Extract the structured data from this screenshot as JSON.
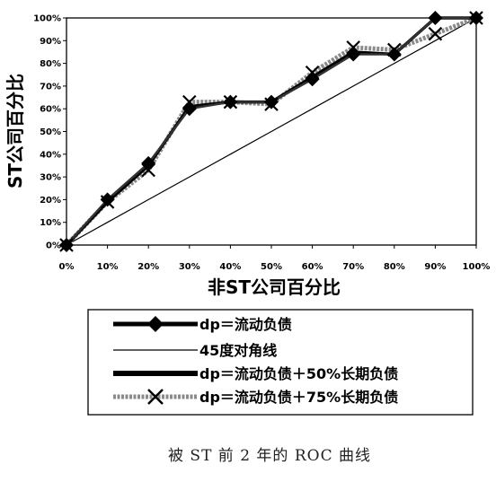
{
  "chart_data": {
    "type": "line",
    "xlabel": "非ST公司百分比",
    "ylabel": "ST公司百分比",
    "caption": "被 ST 前 2 年的 ROC 曲线",
    "x_ticks": [
      "0%",
      "10%",
      "20%",
      "30%",
      "40%",
      "50%",
      "60%",
      "70%",
      "80%",
      "90%",
      "100%"
    ],
    "y_ticks": [
      "0%",
      "10%",
      "20%",
      "30%",
      "40%",
      "50%",
      "60%",
      "70%",
      "80%",
      "90%",
      "100%"
    ],
    "xlim": [
      0,
      100
    ],
    "ylim": [
      0,
      100
    ],
    "grid": false,
    "legend_position": "bottom",
    "x": [
      0,
      10,
      20,
      30,
      40,
      50,
      60,
      70,
      80,
      90,
      100
    ],
    "series": [
      {
        "name": "dp＝流动负债",
        "style": "black-diamond",
        "values": [
          0,
          20,
          36,
          60,
          63,
          63,
          73,
          84,
          84,
          100,
          100
        ]
      },
      {
        "name": "45度对角线",
        "style": "thin-line",
        "values": [
          0,
          10,
          20,
          30,
          40,
          50,
          60,
          70,
          80,
          90,
          100
        ]
      },
      {
        "name": "dp＝流动负债＋50%长期负债",
        "style": "thick-black",
        "values": [
          0,
          19,
          35,
          61,
          63,
          63,
          74,
          85,
          84,
          100,
          100
        ]
      },
      {
        "name": "dp＝流动负债＋75%长期负债",
        "style": "gray-x",
        "values": [
          0,
          19,
          33,
          63,
          63,
          62,
          76,
          87,
          86,
          93,
          100
        ]
      }
    ],
    "colors": {
      "black": "#000000",
      "gray": "#8a8a8a",
      "dark_gray": "#333333"
    }
  }
}
